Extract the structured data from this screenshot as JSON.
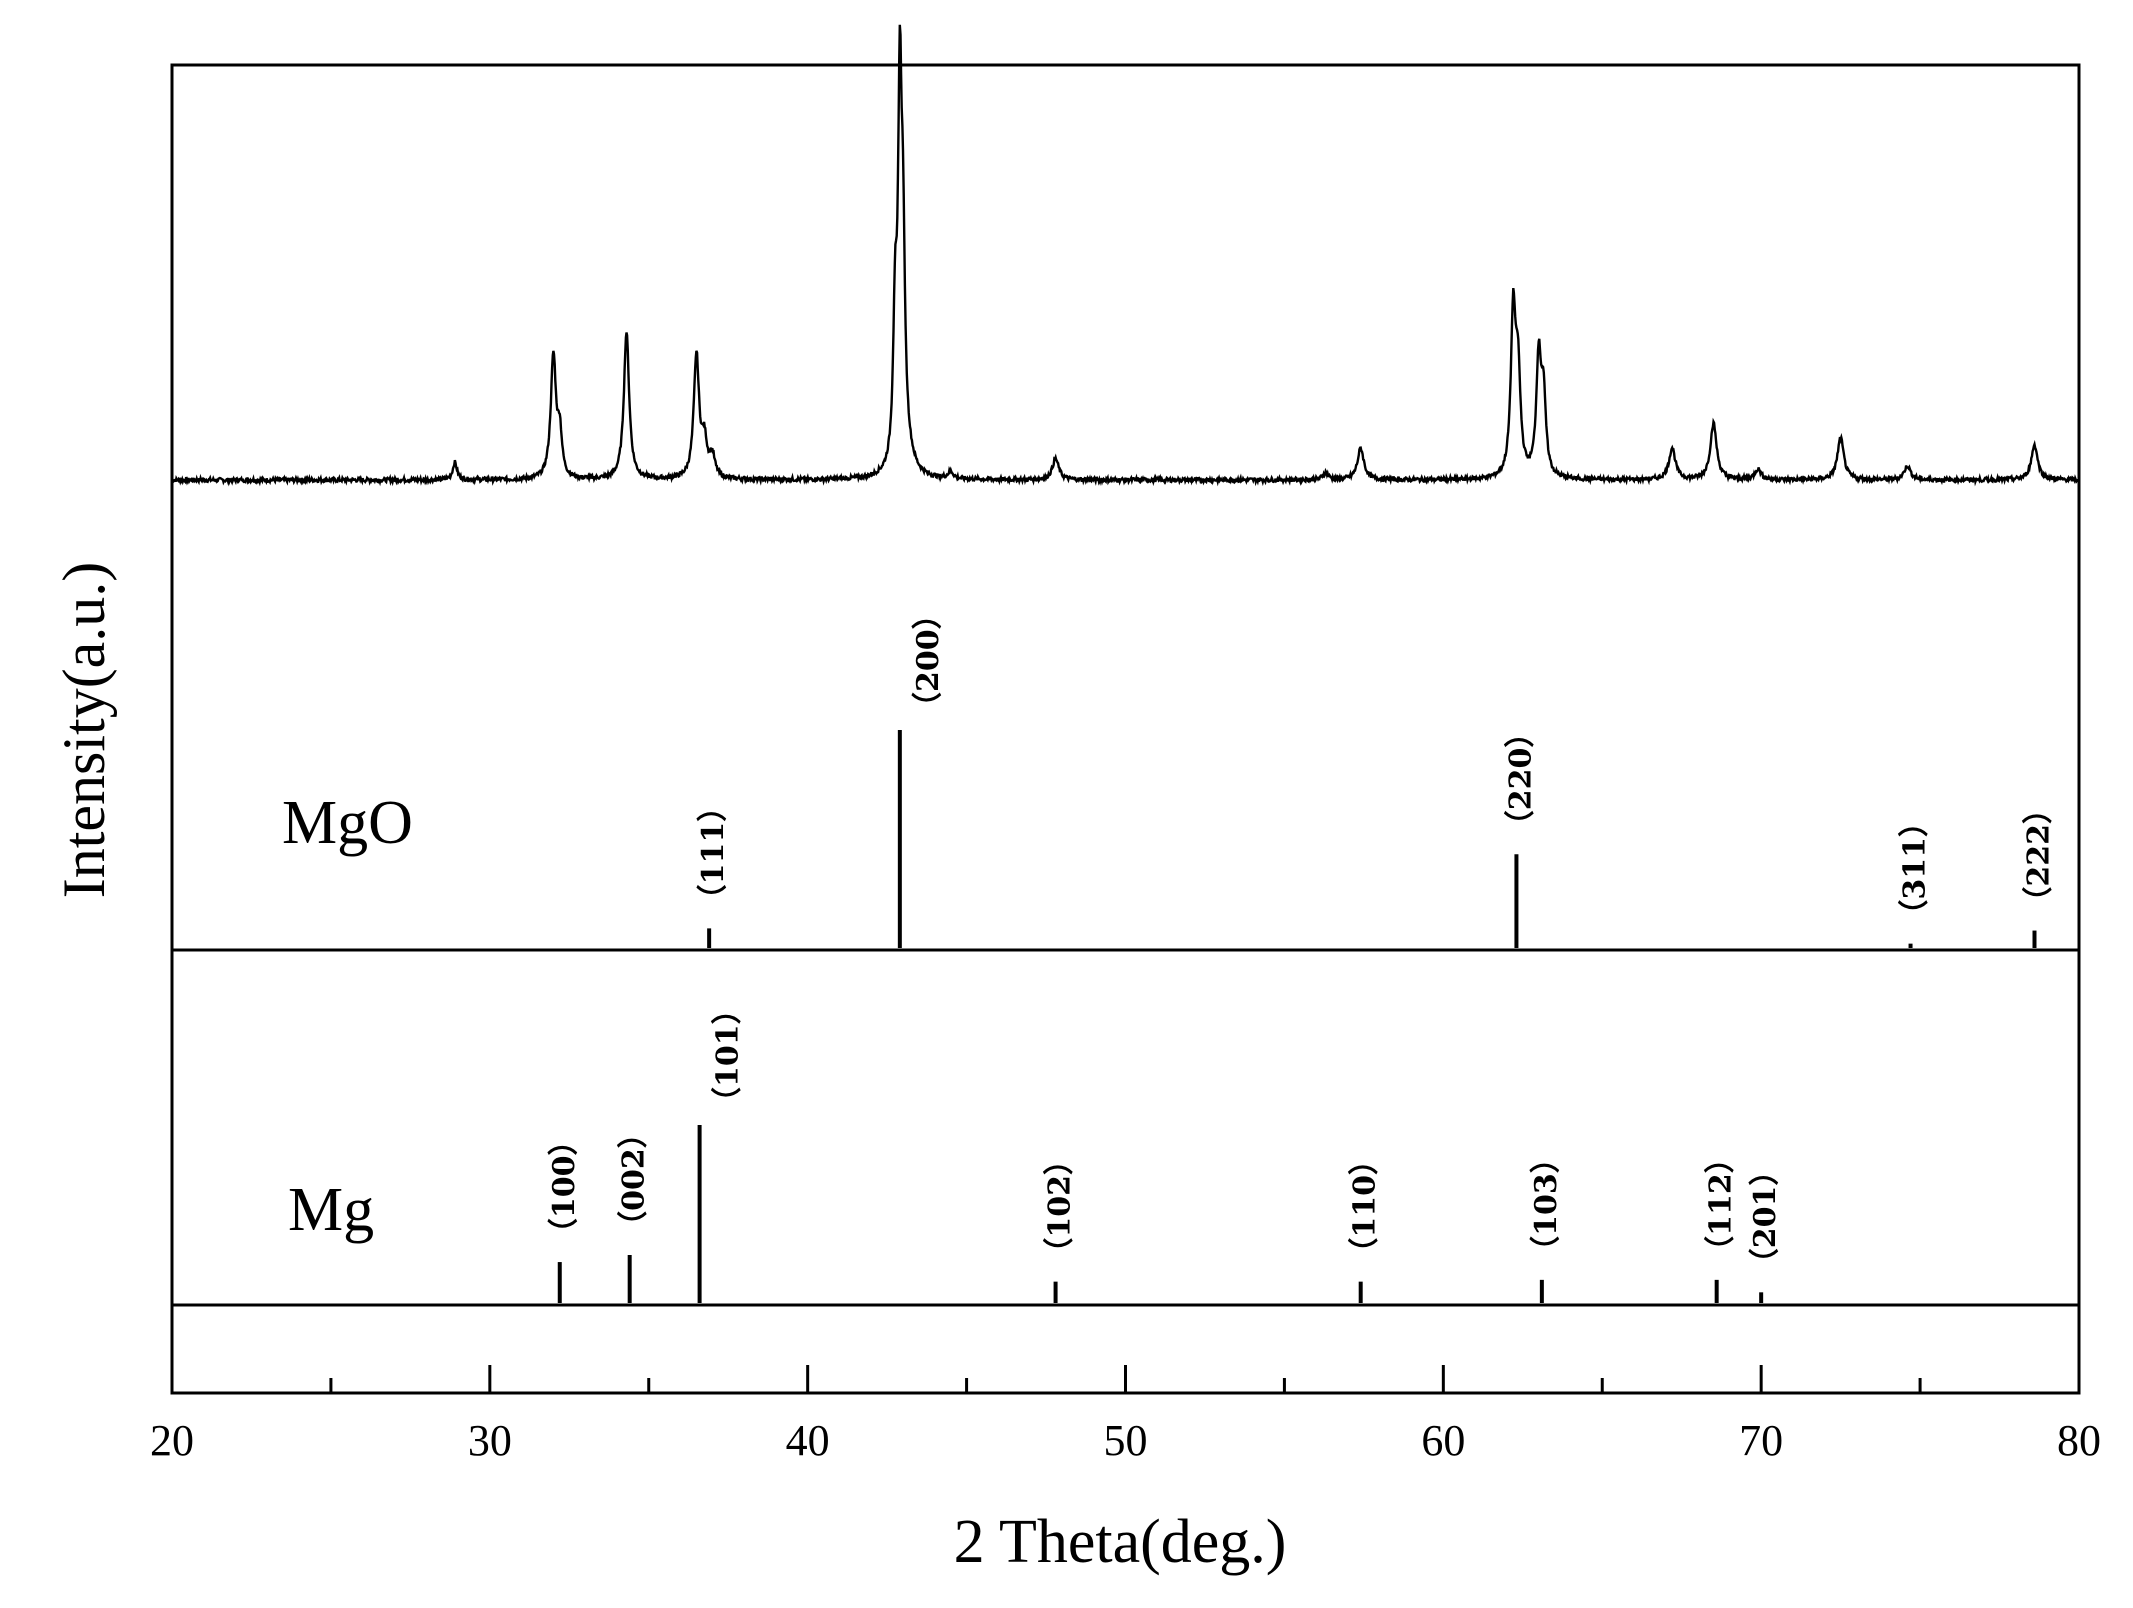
{
  "chart_data": {
    "type": "line",
    "title": "",
    "xlabel": "2 Theta(deg.)",
    "ylabel": "Intensity(a.u.)",
    "xlim": [
      20,
      80
    ],
    "x_ticks": [
      20,
      30,
      40,
      50,
      60,
      70,
      80
    ],
    "x_tick_labels": [
      "20",
      "30",
      "40",
      "50",
      "60",
      "70",
      "80"
    ],
    "grid": false,
    "legend": "none",
    "panels": {
      "pattern": {
        "name": "",
        "baseline": 1,
        "peaks": [
          {
            "x": 28.9,
            "y": 5,
            "w": 0.08
          },
          {
            "x": 32.0,
            "y": 35,
            "w": 0.1
          },
          {
            "x": 32.2,
            "y": 12,
            "w": 0.08
          },
          {
            "x": 34.3,
            "y": 42,
            "w": 0.1
          },
          {
            "x": 36.5,
            "y": 35,
            "w": 0.1
          },
          {
            "x": 36.75,
            "y": 10,
            "w": 0.1
          },
          {
            "x": 37.0,
            "y": 6,
            "w": 0.1
          },
          {
            "x": 42.75,
            "y": 40,
            "w": 0.07
          },
          {
            "x": 42.9,
            "y": 100,
            "w": 0.07
          },
          {
            "x": 43.0,
            "y": 50,
            "w": 0.07
          },
          {
            "x": 43.05,
            "y": 8,
            "w": 0.25
          },
          {
            "x": 44.5,
            "y": 2,
            "w": 0.1
          },
          {
            "x": 47.8,
            "y": 6,
            "w": 0.12
          },
          {
            "x": 56.3,
            "y": 2,
            "w": 0.1
          },
          {
            "x": 57.4,
            "y": 9,
            "w": 0.12
          },
          {
            "x": 62.2,
            "y": 46,
            "w": 0.09
          },
          {
            "x": 62.35,
            "y": 28,
            "w": 0.09
          },
          {
            "x": 63.0,
            "y": 33,
            "w": 0.09
          },
          {
            "x": 63.15,
            "y": 22,
            "w": 0.09
          },
          {
            "x": 67.2,
            "y": 9,
            "w": 0.12
          },
          {
            "x": 68.5,
            "y": 16,
            "w": 0.12
          },
          {
            "x": 69.9,
            "y": 3,
            "w": 0.12
          },
          {
            "x": 72.5,
            "y": 12,
            "w": 0.12
          },
          {
            "x": 74.6,
            "y": 4,
            "w": 0.12
          },
          {
            "x": 78.6,
            "y": 10,
            "w": 0.12
          }
        ]
      },
      "mgo": {
        "name": "MgO",
        "ymax": 100,
        "lines": [
          {
            "x": 36.9,
            "y": 9,
            "hkl": "（111）"
          },
          {
            "x": 42.9,
            "y": 100,
            "hkl": "（200）"
          },
          {
            "x": 62.3,
            "y": 43,
            "hkl": "（220）"
          },
          {
            "x": 74.7,
            "y": 2,
            "hkl": "（311）"
          },
          {
            "x": 78.6,
            "y": 8,
            "hkl": "（222）"
          }
        ]
      },
      "mg": {
        "name": "Mg",
        "ymax": 100,
        "lines": [
          {
            "x": 32.2,
            "y": 23,
            "hkl": "（100）"
          },
          {
            "x": 34.4,
            "y": 27,
            "hkl": "（002）"
          },
          {
            "x": 36.6,
            "y": 100,
            "hkl": "（101）"
          },
          {
            "x": 47.8,
            "y": 12,
            "hkl": "（102）"
          },
          {
            "x": 57.4,
            "y": 12,
            "hkl": "（110）"
          },
          {
            "x": 63.1,
            "y": 13,
            "hkl": "（103）"
          },
          {
            "x": 68.6,
            "y": 13,
            "hkl": "（112）"
          },
          {
            "x": 70.0,
            "y": 6,
            "hkl": "（201）"
          }
        ]
      }
    }
  }
}
